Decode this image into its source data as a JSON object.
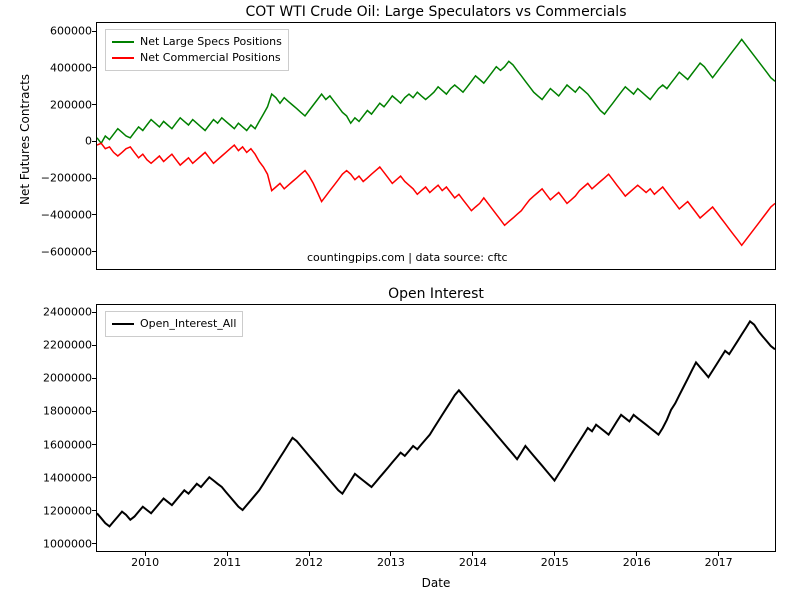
{
  "background_color": "#ffffff",
  "axis_border_color": "#000000",
  "tick_fontsize": 11,
  "label_fontsize": 12,
  "title_fontsize": 14,
  "legend_fontsize": 11,
  "xlabel": "Date",
  "x_axis": {
    "ticks": [
      "2010",
      "2011",
      "2012",
      "2013",
      "2014",
      "2015",
      "2016",
      "2017"
    ],
    "x_min_frac": 2009.4,
    "x_max_frac": 2017.7
  },
  "top_chart": {
    "type": "line",
    "title": "COT WTI Crude Oil: Large Speculators vs Commercials",
    "ylabel": "Net Futures Contracts",
    "ylim": [
      -700000,
      650000
    ],
    "yticks": [
      -600000,
      -400000,
      -200000,
      0,
      200000,
      400000,
      600000
    ],
    "annotation": "countingpips.com | data source: cftc",
    "series": [
      {
        "name": "Net Large Specs Positions",
        "color": "#008000",
        "line_width": 1.5,
        "data": [
          20000,
          -10000,
          30000,
          10000,
          40000,
          70000,
          50000,
          30000,
          20000,
          50000,
          80000,
          60000,
          90000,
          120000,
          100000,
          80000,
          110000,
          90000,
          70000,
          100000,
          130000,
          110000,
          90000,
          120000,
          100000,
          80000,
          60000,
          90000,
          120000,
          100000,
          130000,
          110000,
          90000,
          70000,
          100000,
          80000,
          60000,
          90000,
          70000,
          110000,
          150000,
          190000,
          260000,
          240000,
          210000,
          240000,
          220000,
          200000,
          180000,
          160000,
          140000,
          170000,
          200000,
          230000,
          260000,
          230000,
          250000,
          220000,
          190000,
          160000,
          140000,
          100000,
          130000,
          110000,
          140000,
          170000,
          150000,
          180000,
          210000,
          190000,
          220000,
          250000,
          230000,
          210000,
          240000,
          260000,
          240000,
          270000,
          250000,
          230000,
          250000,
          270000,
          300000,
          280000,
          260000,
          290000,
          310000,
          290000,
          270000,
          300000,
          330000,
          360000,
          340000,
          320000,
          350000,
          380000,
          410000,
          390000,
          410000,
          440000,
          420000,
          390000,
          360000,
          330000,
          300000,
          270000,
          250000,
          230000,
          260000,
          290000,
          270000,
          250000,
          280000,
          310000,
          290000,
          270000,
          300000,
          280000,
          260000,
          230000,
          200000,
          170000,
          150000,
          180000,
          210000,
          240000,
          270000,
          300000,
          280000,
          260000,
          290000,
          270000,
          250000,
          230000,
          260000,
          290000,
          310000,
          290000,
          320000,
          350000,
          380000,
          360000,
          340000,
          370000,
          400000,
          430000,
          410000,
          380000,
          350000,
          380000,
          410000,
          440000,
          470000,
          500000,
          530000,
          560000,
          530000,
          500000,
          470000,
          440000,
          410000,
          380000,
          350000,
          330000
        ]
      },
      {
        "name": "Net Commercial Positions",
        "color": "#ff0000",
        "line_width": 1.5,
        "data": [
          -20000,
          -10000,
          -40000,
          -30000,
          -60000,
          -80000,
          -60000,
          -40000,
          -30000,
          -60000,
          -90000,
          -70000,
          -100000,
          -120000,
          -100000,
          -80000,
          -110000,
          -90000,
          -70000,
          -100000,
          -130000,
          -110000,
          -90000,
          -120000,
          -100000,
          -80000,
          -60000,
          -90000,
          -120000,
          -100000,
          -80000,
          -60000,
          -40000,
          -20000,
          -50000,
          -30000,
          -60000,
          -40000,
          -70000,
          -110000,
          -140000,
          -180000,
          -270000,
          -250000,
          -230000,
          -260000,
          -240000,
          -220000,
          -200000,
          -180000,
          -160000,
          -190000,
          -230000,
          -280000,
          -330000,
          -300000,
          -270000,
          -240000,
          -210000,
          -180000,
          -160000,
          -180000,
          -210000,
          -190000,
          -220000,
          -200000,
          -180000,
          -160000,
          -140000,
          -170000,
          -200000,
          -230000,
          -210000,
          -190000,
          -220000,
          -240000,
          -260000,
          -290000,
          -270000,
          -250000,
          -280000,
          -260000,
          -240000,
          -270000,
          -250000,
          -280000,
          -310000,
          -290000,
          -320000,
          -350000,
          -380000,
          -360000,
          -340000,
          -310000,
          -340000,
          -370000,
          -400000,
          -430000,
          -460000,
          -440000,
          -420000,
          -400000,
          -380000,
          -350000,
          -320000,
          -300000,
          -280000,
          -260000,
          -290000,
          -320000,
          -300000,
          -280000,
          -310000,
          -340000,
          -320000,
          -300000,
          -270000,
          -250000,
          -230000,
          -260000,
          -240000,
          -220000,
          -200000,
          -180000,
          -210000,
          -240000,
          -270000,
          -300000,
          -280000,
          -260000,
          -240000,
          -260000,
          -280000,
          -260000,
          -290000,
          -270000,
          -250000,
          -280000,
          -310000,
          -340000,
          -370000,
          -350000,
          -330000,
          -360000,
          -390000,
          -420000,
          -400000,
          -380000,
          -360000,
          -390000,
          -420000,
          -450000,
          -480000,
          -510000,
          -540000,
          -570000,
          -540000,
          -510000,
          -480000,
          -450000,
          -420000,
          -390000,
          -360000,
          -340000
        ]
      }
    ]
  },
  "bottom_chart": {
    "type": "line",
    "title": "Open Interest",
    "ylim": [
      950000,
      2450000
    ],
    "yticks": [
      1000000,
      1200000,
      1400000,
      1600000,
      1800000,
      2000000,
      2200000,
      2400000
    ],
    "series": [
      {
        "name": "Open_Interest_All",
        "color": "#000000",
        "line_width": 2,
        "data": [
          1180000,
          1150000,
          1120000,
          1100000,
          1130000,
          1160000,
          1190000,
          1170000,
          1140000,
          1160000,
          1190000,
          1220000,
          1200000,
          1180000,
          1210000,
          1240000,
          1270000,
          1250000,
          1230000,
          1260000,
          1290000,
          1320000,
          1300000,
          1330000,
          1360000,
          1340000,
          1370000,
          1400000,
          1380000,
          1360000,
          1340000,
          1310000,
          1280000,
          1250000,
          1220000,
          1200000,
          1230000,
          1260000,
          1290000,
          1320000,
          1360000,
          1400000,
          1440000,
          1480000,
          1520000,
          1560000,
          1600000,
          1640000,
          1620000,
          1590000,
          1560000,
          1530000,
          1500000,
          1470000,
          1440000,
          1410000,
          1380000,
          1350000,
          1320000,
          1300000,
          1340000,
          1380000,
          1420000,
          1400000,
          1380000,
          1360000,
          1340000,
          1370000,
          1400000,
          1430000,
          1460000,
          1490000,
          1520000,
          1550000,
          1530000,
          1560000,
          1590000,
          1570000,
          1600000,
          1630000,
          1660000,
          1700000,
          1740000,
          1780000,
          1820000,
          1860000,
          1900000,
          1930000,
          1900000,
          1870000,
          1840000,
          1810000,
          1780000,
          1750000,
          1720000,
          1690000,
          1660000,
          1630000,
          1600000,
          1570000,
          1540000,
          1510000,
          1550000,
          1590000,
          1560000,
          1530000,
          1500000,
          1470000,
          1440000,
          1410000,
          1380000,
          1420000,
          1460000,
          1500000,
          1540000,
          1580000,
          1620000,
          1660000,
          1700000,
          1680000,
          1720000,
          1700000,
          1680000,
          1660000,
          1700000,
          1740000,
          1780000,
          1760000,
          1740000,
          1780000,
          1760000,
          1740000,
          1720000,
          1700000,
          1680000,
          1660000,
          1700000,
          1750000,
          1810000,
          1850000,
          1900000,
          1950000,
          2000000,
          2050000,
          2100000,
          2070000,
          2040000,
          2010000,
          2050000,
          2090000,
          2130000,
          2170000,
          2150000,
          2190000,
          2230000,
          2270000,
          2310000,
          2350000,
          2330000,
          2290000,
          2260000,
          2230000,
          2200000,
          2180000
        ]
      }
    ]
  }
}
